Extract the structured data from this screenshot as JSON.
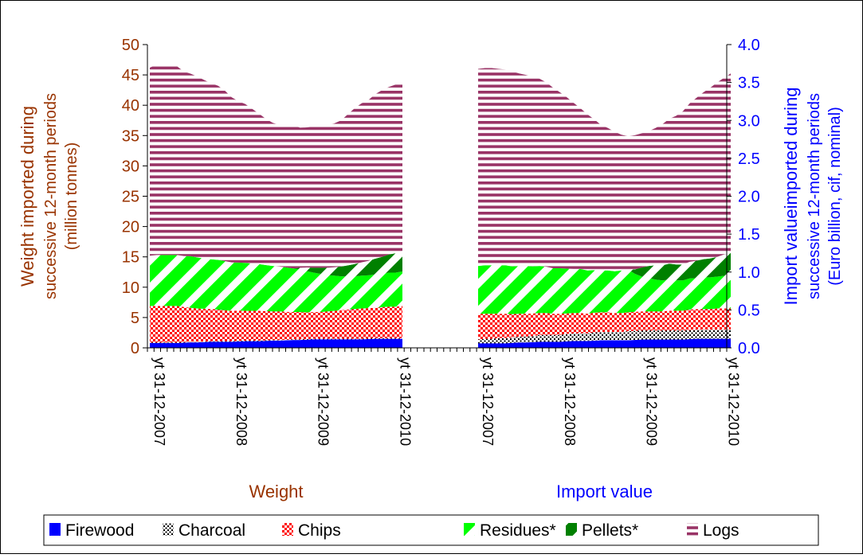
{
  "chart_data": {
    "type": "area",
    "stacked": true,
    "panels": [
      {
        "name": "Weight",
        "axis": "left",
        "x_tick_labels": [
          "yt 31-12-2007",
          "yt 31-12-2008",
          "yt 31-12-2009",
          "yt 31-12-2010"
        ],
        "x_tick_positions": [
          0,
          12,
          24,
          36
        ],
        "series": [
          {
            "name": "Firewood",
            "values": [
              0.8,
              0.8,
              0.8,
              0.8,
              0.8,
              0.85,
              0.9,
              0.9,
              0.95,
              1.0,
              1.0,
              1.0,
              1.0,
              1.05,
              1.1,
              1.1,
              1.1,
              1.15,
              1.2,
              1.2,
              1.25,
              1.3,
              1.3,
              1.35,
              1.4,
              1.4,
              1.4,
              1.4,
              1.4,
              1.4,
              1.4,
              1.4,
              1.45,
              1.5,
              1.5,
              1.5,
              1.5,
              1.5
            ]
          },
          {
            "name": "Charcoal",
            "values": [
              0.1,
              0.1,
              0.1,
              0.1,
              0.1,
              0.1,
              0.1,
              0.1,
              0.1,
              0.1,
              0.1,
              0.1,
              0.1,
              0.1,
              0.1,
              0.1,
              0.1,
              0.1,
              0.1,
              0.1,
              0.1,
              0.1,
              0.1,
              0.1,
              0.1,
              0.1,
              0.1,
              0.1,
              0.1,
              0.1,
              0.1,
              0.1,
              0.1,
              0.1,
              0.1,
              0.1,
              0.1,
              0.1
            ]
          },
          {
            "name": "Chips",
            "values": [
              6.0,
              6.0,
              6.0,
              6.0,
              6.0,
              5.8,
              5.6,
              5.5,
              5.4,
              5.3,
              5.2,
              5.1,
              5.0,
              5.0,
              4.9,
              4.9,
              4.9,
              4.8,
              4.7,
              4.7,
              4.6,
              4.5,
              4.5,
              4.4,
              4.4,
              4.4,
              4.5,
              4.6,
              4.7,
              4.8,
              4.9,
              5.0,
              5.0,
              5.0,
              5.1,
              5.2,
              5.2,
              5.3
            ]
          },
          {
            "name": "Residues*",
            "values": [
              8.3,
              8.4,
              8.4,
              8.4,
              8.4,
              8.4,
              8.5,
              8.4,
              8.3,
              8.2,
              8.2,
              8.1,
              8.0,
              7.9,
              7.9,
              7.8,
              7.7,
              7.6,
              7.5,
              7.4,
              7.3,
              7.2,
              7.0,
              6.8,
              6.5,
              6.3,
              6.0,
              5.8,
              5.6,
              5.5,
              5.4,
              5.4,
              5.4,
              5.5,
              5.5,
              5.6,
              5.6,
              5.7
            ]
          },
          {
            "name": "Pellets*",
            "values": [
              0,
              0,
              0,
              0,
              0,
              0,
              0,
              0,
              0,
              0,
              0,
              0,
              0,
              0,
              0,
              0,
              0,
              0,
              0,
              0,
              0,
              0,
              0.3,
              0.6,
              0.8,
              1.0,
              1.2,
              1.4,
              1.6,
              1.8,
              2.0,
              2.2,
              2.4,
              2.6,
              2.8,
              3.0,
              3.2,
              3.4
            ]
          },
          {
            "name": "Logs",
            "values": [
              31.0,
              31.4,
              31.5,
              31.3,
              31.1,
              30.4,
              30.1,
              29.8,
              29.4,
              29.0,
              28.7,
              28.1,
              27.2,
              26.6,
              26.2,
              25.5,
              24.8,
              24.1,
              23.6,
              23.3,
              23.4,
              23.6,
              23.1,
              23.1,
              23.3,
              23.4,
              23.5,
              23.7,
              24.1,
              24.9,
              25.7,
              26.2,
              26.5,
              27.1,
              27.5,
              27.6,
              27.8,
              27.8
            ]
          }
        ]
      },
      {
        "name": "Import value",
        "axis": "right",
        "x_tick_labels": [
          "yt 31-12-2007",
          "yt 31-12-2008",
          "yt 31-12-2009",
          "yt 31-12-2010"
        ],
        "x_tick_positions": [
          0,
          12,
          24,
          36
        ],
        "series": [
          {
            "name": "Firewood",
            "values": [
              0.06,
              0.06,
              0.06,
              0.06,
              0.06,
              0.065,
              0.07,
              0.07,
              0.075,
              0.08,
              0.08,
              0.08,
              0.08,
              0.085,
              0.09,
              0.09,
              0.09,
              0.095,
              0.1,
              0.1,
              0.1,
              0.1,
              0.1,
              0.105,
              0.11,
              0.11,
              0.11,
              0.11,
              0.11,
              0.11,
              0.11,
              0.115,
              0.12,
              0.12,
              0.12,
              0.12,
              0.12,
              0.12
            ]
          },
          {
            "name": "Charcoal",
            "values": [
              0.05,
              0.06,
              0.06,
              0.07,
              0.07,
              0.07,
              0.08,
              0.08,
              0.08,
              0.09,
              0.09,
              0.09,
              0.09,
              0.1,
              0.1,
              0.1,
              0.1,
              0.11,
              0.11,
              0.11,
              0.11,
              0.11,
              0.12,
              0.12,
              0.12,
              0.12,
              0.12,
              0.12,
              0.12,
              0.12,
              0.12,
              0.12,
              0.12,
              0.12,
              0.12,
              0.12,
              0.12,
              0.12
            ]
          },
          {
            "name": "Chips",
            "values": [
              0.34,
              0.33,
              0.33,
              0.32,
              0.32,
              0.31,
              0.3,
              0.3,
              0.3,
              0.29,
              0.29,
              0.28,
              0.28,
              0.27,
              0.27,
              0.27,
              0.26,
              0.26,
              0.26,
              0.26,
              0.25,
              0.25,
              0.25,
              0.25,
              0.25,
              0.25,
              0.25,
              0.25,
              0.26,
              0.26,
              0.26,
              0.27,
              0.27,
              0.27,
              0.27,
              0.28,
              0.28,
              0.28
            ]
          },
          {
            "name": "Residues*",
            "values": [
              0.63,
              0.64,
              0.64,
              0.64,
              0.64,
              0.63,
              0.63,
              0.63,
              0.62,
              0.62,
              0.61,
              0.6,
              0.6,
              0.59,
              0.58,
              0.58,
              0.57,
              0.56,
              0.55,
              0.55,
              0.55,
              0.56,
              0.56,
              0.5,
              0.46,
              0.44,
              0.42,
              0.41,
              0.41,
              0.4,
              0.4,
              0.41,
              0.41,
              0.42,
              0.42,
              0.42,
              0.43,
              0.43
            ]
          },
          {
            "name": "Pellets*",
            "values": [
              0,
              0,
              0,
              0,
              0,
              0,
              0,
              0,
              0,
              0,
              0,
              0,
              0,
              0,
              0,
              0,
              0,
              0,
              0,
              0,
              0,
              0,
              0,
              0.06,
              0.12,
              0.16,
              0.19,
              0.2,
              0.21,
              0.21,
              0.21,
              0.22,
              0.23,
              0.24,
              0.25,
              0.26,
              0.28,
              0.3
            ]
          },
          {
            "name": "Logs",
            "values": [
              2.6,
              2.6,
              2.6,
              2.59,
              2.58,
              2.57,
              2.54,
              2.52,
              2.5,
              2.47,
              2.43,
              2.38,
              2.32,
              2.26,
              2.19,
              2.12,
              2.06,
              1.99,
              1.92,
              1.88,
              1.84,
              1.79,
              1.76,
              1.77,
              1.77,
              1.78,
              1.81,
              1.86,
              1.91,
              1.96,
              2.02,
              2.09,
              2.15,
              2.2,
              2.25,
              2.3,
              2.33,
              2.37
            ]
          }
        ]
      }
    ],
    "left_axis": {
      "label_lines": [
        "Weight imported during",
        "successive 12-month periods",
        "(million tonnes)"
      ],
      "ylim": [
        0,
        50
      ],
      "ticks": [
        0,
        5,
        10,
        15,
        20,
        25,
        30,
        35,
        40,
        45,
        50
      ],
      "tick_labels": [
        "0",
        "5",
        "10",
        "15",
        "20",
        "25",
        "30",
        "35",
        "40",
        "45",
        "50"
      ],
      "color": "#993300"
    },
    "right_axis": {
      "label_lines": [
        "Import valueimported during",
        "successive 12-month periods",
        "(Euro billion, cif, nominal)"
      ],
      "ylim": [
        0,
        4.0
      ],
      "ticks": [
        0,
        0.5,
        1.0,
        1.5,
        2.0,
        2.5,
        3.0,
        3.5,
        4.0
      ],
      "tick_labels": [
        "0.0",
        "0.5",
        "1.0",
        "1.5",
        "2.0",
        "2.5",
        "3.0",
        "3.5",
        "4.0"
      ],
      "color": "#0000ff"
    },
    "legend": {
      "position": "bottom",
      "entries": [
        {
          "label": "Firewood",
          "color": "#0000ff",
          "pattern": "solid"
        },
        {
          "label": "Charcoal",
          "color": "#000000",
          "pattern": "dotted"
        },
        {
          "label": "Chips",
          "color": "#ff0000",
          "pattern": "checker"
        },
        {
          "label": "Residues*",
          "color": "#00ff00",
          "pattern": "diagonal-wide"
        },
        {
          "label": "Pellets*",
          "color": "#008000",
          "pattern": "diagonal-dark"
        },
        {
          "label": "Logs",
          "color": "#993366",
          "pattern": "horizontal-lines"
        }
      ]
    },
    "grid": false
  }
}
